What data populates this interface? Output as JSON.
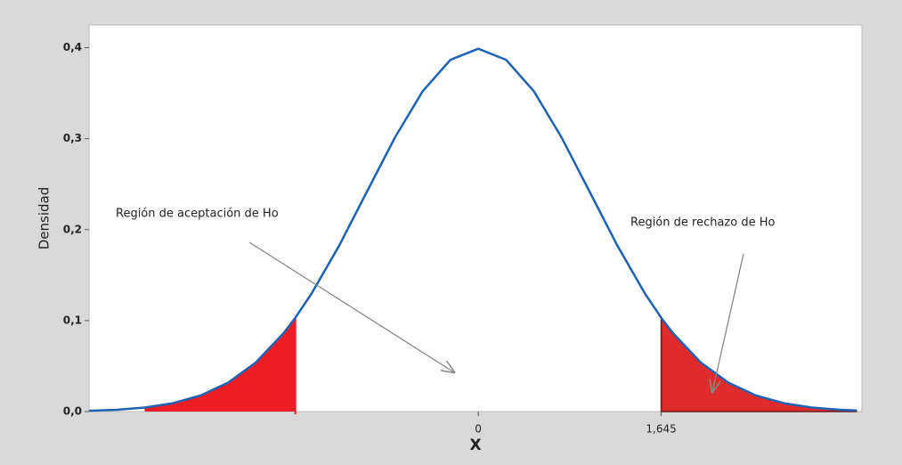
{
  "chart_data": {
    "type": "line",
    "x_label": "X",
    "y_label": "Densidad",
    "x": [
      -3.5,
      -3.25,
      -3.0,
      -2.75,
      -2.5,
      -2.25,
      -2.0,
      -1.75,
      -1.645,
      -1.5,
      -1.25,
      -1.0,
      -0.75,
      -0.5,
      -0.25,
      0,
      0.25,
      0.5,
      0.75,
      1.0,
      1.25,
      1.5,
      1.645,
      1.75,
      2.0,
      2.25,
      2.5,
      2.75,
      3.0,
      3.25,
      3.4
    ],
    "values": [
      0.0009,
      0.002,
      0.0044,
      0.0091,
      0.0175,
      0.0317,
      0.054,
      0.0863,
      0.1031,
      0.1295,
      0.1826,
      0.242,
      0.3011,
      0.3521,
      0.3867,
      0.3989,
      0.3867,
      0.3521,
      0.3011,
      0.242,
      0.1826,
      0.1295,
      0.1031,
      0.0863,
      0.054,
      0.0317,
      0.0175,
      0.0091,
      0.0044,
      0.002,
      0.0012
    ],
    "color": "#1f62b4",
    "shaded_regions": [
      {
        "from": -3.0,
        "to": -1.645,
        "color": "#ee1c24"
      },
      {
        "from": 1.645,
        "to": 3.4,
        "color": "#df2b2b"
      }
    ],
    "annotations": [
      "Región de aceptación de Ho",
      "Región de rechazo de Ho"
    ],
    "xlim": [
      -3.5,
      3.45
    ],
    "ylim": [
      0,
      0.425
    ],
    "xticks": [
      0,
      {
        "value": 1.645,
        "label": "1,645"
      }
    ],
    "yticks": [
      {
        "value": 0,
        "label": "0,0"
      },
      {
        "value": 0.1,
        "label": "0,1"
      },
      {
        "value": 0.2,
        "label": "0,2"
      },
      {
        "value": 0.3,
        "label": "0,3"
      },
      {
        "value": 0.4,
        "label": "0,4"
      }
    ],
    "grid": false
  }
}
